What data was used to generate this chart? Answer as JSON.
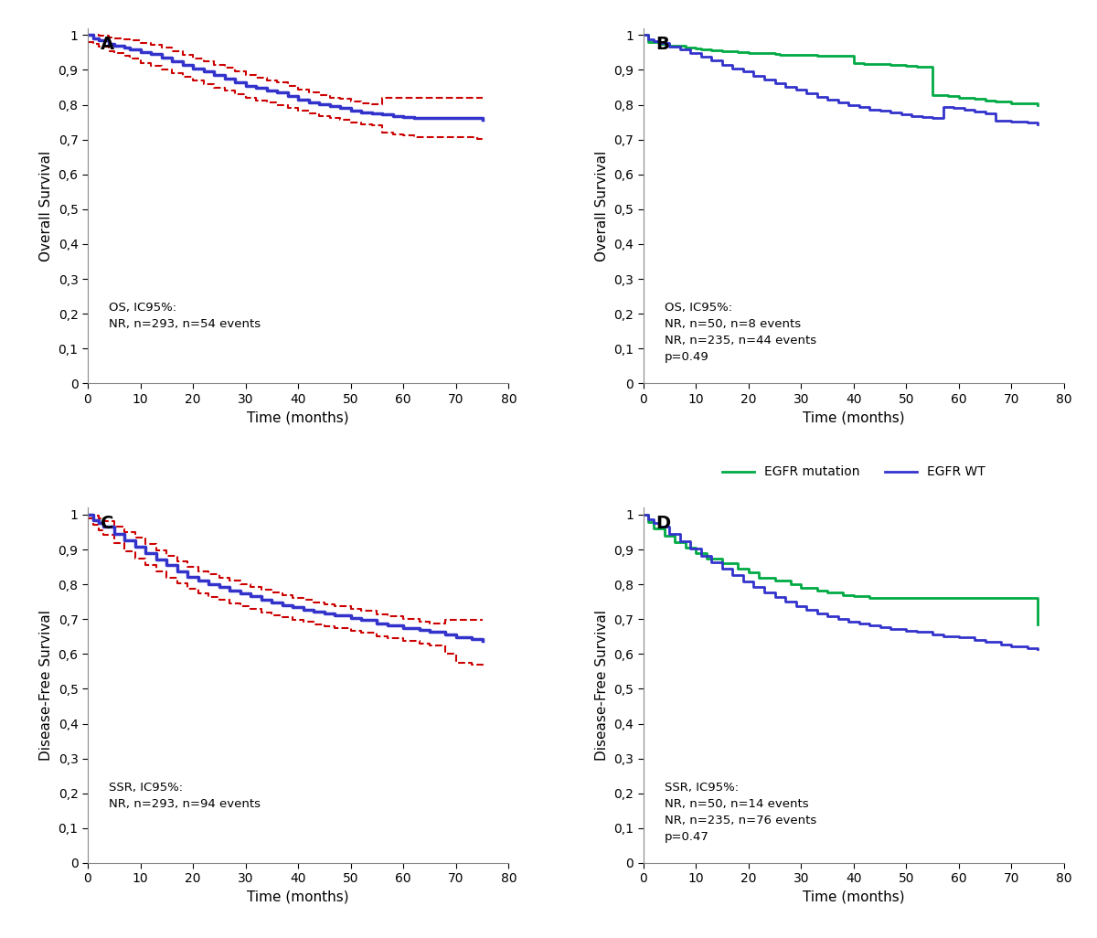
{
  "panel_A": {
    "label": "A",
    "ylabel": "Overall Survival",
    "xlabel": "Time (months)",
    "xlim": [
      0,
      80
    ],
    "ylim": [
      0,
      1.02
    ],
    "yticks": [
      0,
      0.1,
      0.2,
      0.3,
      0.4,
      0.5,
      0.6,
      0.7,
      0.8,
      0.9,
      1
    ],
    "xticks": [
      0,
      10,
      20,
      30,
      40,
      50,
      60,
      70,
      80
    ],
    "annotation": "OS, IC95%:\nNR, n=293, n=54 events",
    "main_color": "#3333cc",
    "ci_color": "#cc0000",
    "main_x": [
      0,
      1,
      2,
      4,
      5,
      7,
      8,
      10,
      12,
      14,
      16,
      18,
      20,
      22,
      24,
      26,
      28,
      30,
      32,
      34,
      36,
      38,
      40,
      42,
      44,
      46,
      48,
      50,
      52,
      54,
      56,
      58,
      60,
      62,
      65,
      67,
      70,
      74,
      75
    ],
    "main_y": [
      1.0,
      0.99,
      0.985,
      0.975,
      0.97,
      0.965,
      0.96,
      0.95,
      0.945,
      0.935,
      0.925,
      0.915,
      0.905,
      0.895,
      0.885,
      0.875,
      0.865,
      0.855,
      0.848,
      0.842,
      0.835,
      0.825,
      0.815,
      0.808,
      0.802,
      0.795,
      0.79,
      0.783,
      0.778,
      0.775,
      0.772,
      0.768,
      0.765,
      0.763,
      0.762,
      0.762,
      0.762,
      0.762,
      0.757
    ],
    "upper_x": [
      0,
      1,
      2,
      4,
      5,
      7,
      8,
      10,
      12,
      14,
      16,
      18,
      20,
      22,
      24,
      26,
      28,
      30,
      32,
      34,
      36,
      38,
      40,
      42,
      44,
      46,
      48,
      50,
      52,
      54,
      56,
      58,
      60,
      62,
      65,
      67,
      70,
      74,
      75
    ],
    "upper_y": [
      1.0,
      1.0,
      0.998,
      0.993,
      0.99,
      0.987,
      0.984,
      0.977,
      0.972,
      0.963,
      0.953,
      0.944,
      0.934,
      0.924,
      0.915,
      0.906,
      0.895,
      0.885,
      0.878,
      0.871,
      0.864,
      0.853,
      0.843,
      0.836,
      0.829,
      0.821,
      0.816,
      0.809,
      0.804,
      0.801,
      0.82,
      0.82,
      0.82,
      0.82,
      0.82,
      0.82,
      0.82,
      0.82,
      0.82
    ],
    "lower_x": [
      0,
      1,
      2,
      4,
      5,
      7,
      8,
      10,
      12,
      14,
      16,
      18,
      20,
      22,
      24,
      26,
      28,
      30,
      32,
      34,
      36,
      38,
      40,
      42,
      44,
      46,
      48,
      50,
      52,
      54,
      56,
      58,
      60,
      62,
      65,
      67,
      70,
      74,
      75
    ],
    "lower_y": [
      0.98,
      0.975,
      0.967,
      0.955,
      0.948,
      0.94,
      0.933,
      0.92,
      0.912,
      0.9,
      0.89,
      0.88,
      0.87,
      0.86,
      0.85,
      0.84,
      0.83,
      0.82,
      0.813,
      0.807,
      0.8,
      0.79,
      0.782,
      0.774,
      0.768,
      0.762,
      0.756,
      0.75,
      0.745,
      0.741,
      0.72,
      0.716,
      0.712,
      0.708,
      0.706,
      0.706,
      0.706,
      0.703,
      0.695
    ]
  },
  "panel_B": {
    "label": "B",
    "ylabel": "Overall Survival",
    "xlabel": "Time (months)",
    "xlim": [
      0,
      80
    ],
    "ylim": [
      0,
      1.02
    ],
    "yticks": [
      0,
      0.1,
      0.2,
      0.3,
      0.4,
      0.5,
      0.6,
      0.7,
      0.8,
      0.9,
      1
    ],
    "xticks": [
      0,
      10,
      20,
      30,
      40,
      50,
      60,
      70,
      80
    ],
    "annotation": "OS, IC95%:\nNR, n=50, n=8 events\nNR, n=235, n=44 events\np=0.49",
    "green_color": "#00aa44",
    "blue_color": "#3333cc",
    "legend_labels": [
      "EGFR mutation",
      "EGFR WT"
    ],
    "green_x": [
      0,
      1,
      3,
      5,
      8,
      10,
      11,
      13,
      15,
      18,
      20,
      25,
      26,
      28,
      30,
      33,
      35,
      40,
      42,
      45,
      47,
      50,
      52,
      55,
      58,
      60,
      63,
      65,
      67,
      70,
      73,
      75
    ],
    "green_y": [
      1.0,
      0.98,
      0.975,
      0.97,
      0.965,
      0.962,
      0.96,
      0.956,
      0.953,
      0.95,
      0.948,
      0.945,
      0.944,
      0.943,
      0.942,
      0.941,
      0.94,
      0.92,
      0.918,
      0.916,
      0.914,
      0.912,
      0.91,
      0.828,
      0.825,
      0.82,
      0.818,
      0.812,
      0.81,
      0.803,
      0.803,
      0.8
    ],
    "blue_x": [
      0,
      1,
      2,
      3,
      5,
      7,
      9,
      11,
      13,
      15,
      17,
      19,
      21,
      23,
      25,
      27,
      29,
      31,
      33,
      35,
      37,
      39,
      41,
      43,
      45,
      47,
      49,
      51,
      53,
      55,
      57,
      59,
      61,
      63,
      65,
      67,
      70,
      73,
      75
    ],
    "blue_y": [
      1.0,
      0.988,
      0.983,
      0.978,
      0.968,
      0.958,
      0.948,
      0.938,
      0.928,
      0.915,
      0.905,
      0.895,
      0.882,
      0.872,
      0.862,
      0.852,
      0.843,
      0.833,
      0.823,
      0.815,
      0.808,
      0.8,
      0.793,
      0.787,
      0.782,
      0.777,
      0.772,
      0.768,
      0.765,
      0.762,
      0.793,
      0.79,
      0.786,
      0.78,
      0.775,
      0.753,
      0.752,
      0.748,
      0.745
    ]
  },
  "panel_C": {
    "label": "C",
    "ylabel": "Disease-Free Survival",
    "xlabel": "Time (months)",
    "xlim": [
      0,
      80
    ],
    "ylim": [
      0,
      1.02
    ],
    "yticks": [
      0,
      0.1,
      0.2,
      0.3,
      0.4,
      0.5,
      0.6,
      0.7,
      0.8,
      0.9,
      1
    ],
    "xticks": [
      0,
      10,
      20,
      30,
      40,
      50,
      60,
      70,
      80
    ],
    "annotation": "SSR, IC95%:\nNR, n=293, n=94 events",
    "main_color": "#3333cc",
    "ci_color": "#cc0000",
    "main_x": [
      0,
      1,
      2,
      3,
      5,
      7,
      9,
      11,
      13,
      15,
      17,
      19,
      21,
      23,
      25,
      27,
      29,
      31,
      33,
      35,
      37,
      39,
      41,
      43,
      45,
      47,
      50,
      52,
      55,
      57,
      60,
      63,
      65,
      68,
      70,
      73,
      75
    ],
    "main_y": [
      1.0,
      0.985,
      0.975,
      0.965,
      0.945,
      0.926,
      0.908,
      0.89,
      0.872,
      0.855,
      0.838,
      0.822,
      0.81,
      0.8,
      0.792,
      0.782,
      0.773,
      0.765,
      0.757,
      0.748,
      0.741,
      0.735,
      0.728,
      0.722,
      0.716,
      0.71,
      0.703,
      0.697,
      0.688,
      0.682,
      0.675,
      0.668,
      0.663,
      0.655,
      0.648,
      0.642,
      0.638
    ],
    "upper_x": [
      0,
      1,
      2,
      3,
      5,
      7,
      9,
      11,
      13,
      15,
      17,
      19,
      21,
      23,
      25,
      27,
      29,
      31,
      33,
      35,
      37,
      39,
      41,
      43,
      45,
      47,
      50,
      52,
      55,
      57,
      60,
      63,
      65,
      68,
      70,
      73,
      75
    ],
    "upper_y": [
      1.0,
      0.997,
      0.99,
      0.982,
      0.965,
      0.949,
      0.933,
      0.916,
      0.898,
      0.882,
      0.865,
      0.849,
      0.838,
      0.828,
      0.82,
      0.81,
      0.801,
      0.793,
      0.785,
      0.776,
      0.769,
      0.762,
      0.756,
      0.749,
      0.743,
      0.737,
      0.73,
      0.724,
      0.714,
      0.708,
      0.7,
      0.693,
      0.688,
      0.698,
      0.698,
      0.698,
      0.698
    ],
    "lower_x": [
      0,
      1,
      2,
      3,
      5,
      7,
      9,
      11,
      13,
      15,
      17,
      19,
      21,
      23,
      25,
      27,
      29,
      31,
      33,
      35,
      37,
      39,
      41,
      43,
      45,
      47,
      50,
      52,
      55,
      57,
      60,
      63,
      65,
      68,
      70,
      73,
      75
    ],
    "lower_y": [
      0.99,
      0.972,
      0.956,
      0.942,
      0.918,
      0.896,
      0.875,
      0.856,
      0.838,
      0.82,
      0.803,
      0.787,
      0.774,
      0.764,
      0.756,
      0.746,
      0.737,
      0.729,
      0.72,
      0.712,
      0.705,
      0.699,
      0.692,
      0.686,
      0.68,
      0.674,
      0.667,
      0.661,
      0.651,
      0.645,
      0.638,
      0.63,
      0.625,
      0.6,
      0.575,
      0.57,
      0.565
    ]
  },
  "panel_D": {
    "label": "D",
    "ylabel": "Disease-Free Survival",
    "xlabel": "Time (months)",
    "xlim": [
      0,
      80
    ],
    "ylim": [
      0,
      1.02
    ],
    "yticks": [
      0,
      0.1,
      0.2,
      0.3,
      0.4,
      0.5,
      0.6,
      0.7,
      0.8,
      0.9,
      1
    ],
    "xticks": [
      0,
      10,
      20,
      30,
      40,
      50,
      60,
      70,
      80
    ],
    "annotation": "SSR, IC95%:\nNR, n=50, n=14 events\nNR, n=235, n=76 events\np=0.47",
    "green_color": "#00aa44",
    "blue_color": "#3333cc",
    "legend_labels": [
      "EGFR mutation",
      "EGFR WT"
    ],
    "green_x": [
      0,
      1,
      2,
      4,
      6,
      8,
      10,
      12,
      15,
      18,
      20,
      22,
      25,
      28,
      30,
      33,
      35,
      38,
      40,
      43,
      45,
      48,
      50,
      55,
      60,
      65,
      70,
      73,
      75
    ],
    "green_y": [
      1.0,
      0.98,
      0.96,
      0.94,
      0.92,
      0.905,
      0.89,
      0.875,
      0.86,
      0.845,
      0.835,
      0.82,
      0.81,
      0.8,
      0.79,
      0.782,
      0.776,
      0.77,
      0.765,
      0.762,
      0.762,
      0.762,
      0.762,
      0.762,
      0.762,
      0.762,
      0.762,
      0.762,
      0.685
    ],
    "blue_x": [
      0,
      1,
      2,
      3,
      5,
      7,
      9,
      11,
      13,
      15,
      17,
      19,
      21,
      23,
      25,
      27,
      29,
      31,
      33,
      35,
      37,
      39,
      41,
      43,
      45,
      47,
      50,
      52,
      55,
      57,
      60,
      63,
      65,
      68,
      70,
      73,
      75
    ],
    "blue_y": [
      1.0,
      0.988,
      0.977,
      0.966,
      0.945,
      0.923,
      0.903,
      0.883,
      0.863,
      0.845,
      0.826,
      0.808,
      0.792,
      0.777,
      0.763,
      0.75,
      0.737,
      0.727,
      0.717,
      0.708,
      0.7,
      0.693,
      0.688,
      0.682,
      0.677,
      0.672,
      0.667,
      0.663,
      0.657,
      0.652,
      0.648,
      0.64,
      0.636,
      0.628,
      0.622,
      0.617,
      0.613
    ]
  },
  "bg_color": "#ffffff",
  "panel_bg": "#ffffff"
}
